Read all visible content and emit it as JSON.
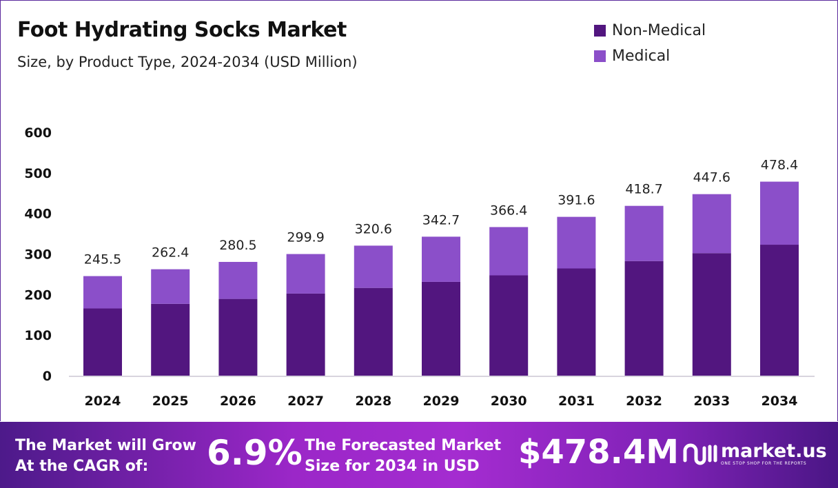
{
  "chart_data": {
    "type": "bar",
    "stacked": true,
    "title": "Foot Hydrating Socks Market",
    "subtitle": "Size, by Product Type, 2024-2034 (USD Million)",
    "categories": [
      "2024",
      "2025",
      "2026",
      "2027",
      "2028",
      "2029",
      "2030",
      "2031",
      "2032",
      "2033",
      "2034"
    ],
    "series": [
      {
        "name": "Non-Medical",
        "color": "#52167f",
        "values": [
          165.7,
          177.1,
          189.3,
          202.4,
          216.4,
          231.3,
          247.3,
          264.3,
          282.6,
          302.1,
          322.9
        ]
      },
      {
        "name": "Medical",
        "color": "#8b4fc9",
        "values": [
          79.8,
          85.3,
          91.2,
          97.5,
          104.2,
          111.4,
          119.1,
          127.3,
          136.1,
          145.5,
          155.5
        ]
      }
    ],
    "totals": [
      "245.5",
      "262.4",
      "280.5",
      "299.9",
      "320.6",
      "342.7",
      "366.4",
      "391.6",
      "418.7",
      "447.6",
      "478.4"
    ],
    "yticks": [
      "0",
      "100",
      "200",
      "300",
      "400",
      "500",
      "600"
    ],
    "ylim": [
      0,
      600
    ],
    "grid": false,
    "legend_position": "top-right"
  },
  "banner": {
    "cagr_text_line1": "The Market will Grow",
    "cagr_text_line2": "At the CAGR of:",
    "cagr_value": "6.9%",
    "forecast_text_line1": "The Forecasted Market",
    "forecast_text_line2": "Size for 2034 in USD",
    "forecast_value": "$478.4M",
    "logo_name": "market.us",
    "logo_tagline": "ONE STOP SHOP FOR THE REPORTS"
  }
}
